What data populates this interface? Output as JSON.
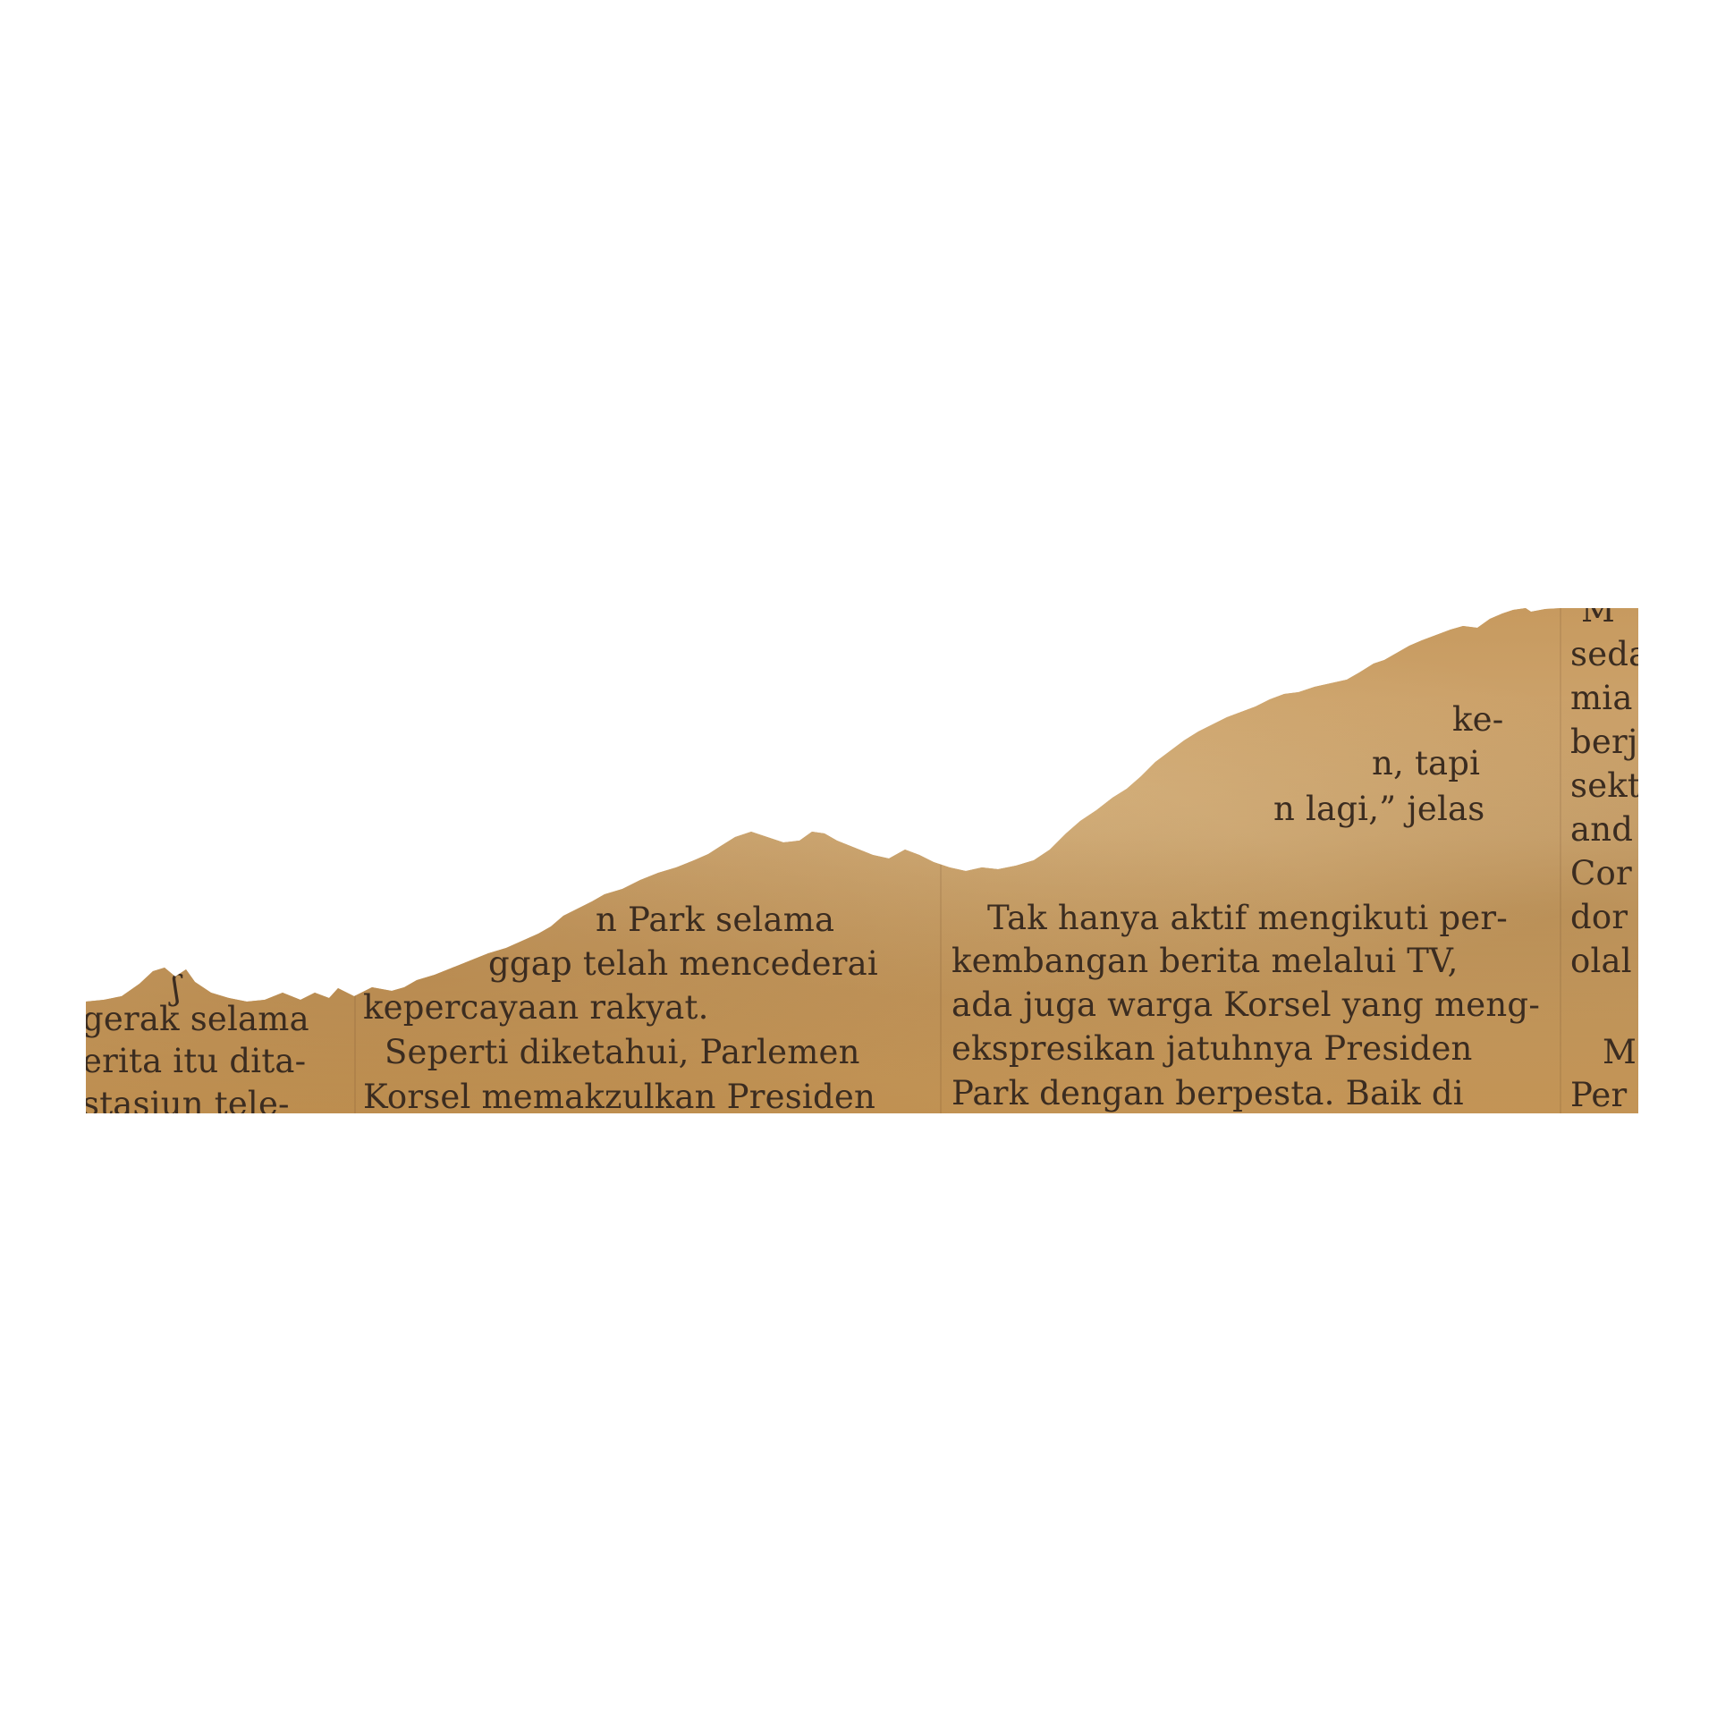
{
  "paper_color": "#c9a068",
  "ink_color": "#3b2c20",
  "columns": [
    {
      "lines": [
        "ʃ",
        "gerak selama",
        "erita itu dita-",
        "stasiun tele-"
      ]
    },
    {
      "lines": [
        "n Park selama",
        "ggap telah mencederai",
        "kepercayaan rakyat.",
        "Seperti diketahui, Parlemen",
        "Korsel memakzulkan Presiden"
      ]
    },
    {
      "lines": [
        "ke-",
        "n, tapi",
        "n lagi,” jelas",
        "Tak hanya aktif mengikuti per-",
        "kembangan berita melalui TV,",
        "ada juga warga Korsel yang meng-",
        "ekspresikan jatuhnya Presiden",
        "Park dengan berpesta. Baik di"
      ]
    },
    {
      "lines": [
        "M",
        "seda",
        "mia",
        "berj",
        "sekt",
        "and",
        "Cor",
        "dor",
        "olal",
        "M",
        "Per"
      ]
    }
  ]
}
